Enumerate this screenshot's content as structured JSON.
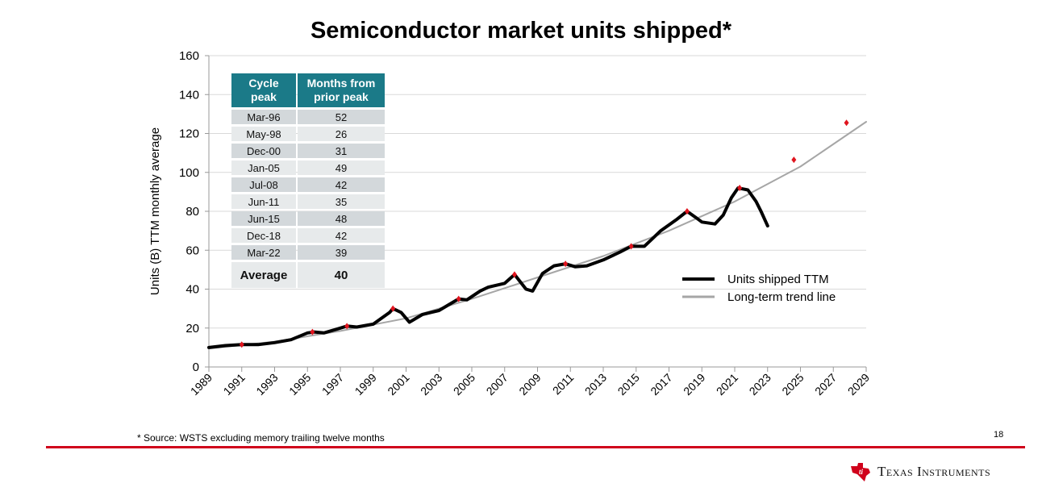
{
  "chart_data": {
    "type": "line",
    "title": "Semiconductor market units shipped*",
    "xlabel": "",
    "ylabel": "Units (B) TTM monthly average",
    "xlim": [
      1989,
      2029
    ],
    "ylim": [
      0,
      160
    ],
    "x_ticks": [
      "1989",
      "1991",
      "1993",
      "1995",
      "1997",
      "1999",
      "2001",
      "2003",
      "2005",
      "2007",
      "2009",
      "2011",
      "2013",
      "2015",
      "2017",
      "2019",
      "2021",
      "2023",
      "2025",
      "2027",
      "2029"
    ],
    "y_ticks": [
      "0",
      "20",
      "40",
      "60",
      "80",
      "100",
      "120",
      "140",
      "160"
    ],
    "grid": true,
    "legend_placement": "right",
    "series": [
      {
        "name": "Units shipped TTM",
        "color": "#000000",
        "x": [
          1989,
          1990,
          1991,
          1992,
          1993,
          1994,
          1995,
          1995.4,
          1996,
          1997,
          1997.4,
          1998,
          1999,
          2000,
          2000.2,
          2000.7,
          2001.2,
          2002,
          2002.5,
          2003,
          2004,
          2004.2,
          2004.7,
          2005.5,
          2006,
          2007,
          2007.6,
          2008.3,
          2008.7,
          2009.3,
          2010,
          2010.7,
          2011.3,
          2012,
          2013,
          2014,
          2014.7,
          2015.5,
          2016,
          2016.5,
          2017.5,
          2018.1,
          2018.6,
          2019,
          2019.8,
          2020.3,
          2020.8,
          2021.2,
          2021.8,
          2022.3,
          2022.6,
          2023
        ],
        "y": [
          10,
          11,
          11.5,
          11.5,
          12.5,
          14,
          17.5,
          18,
          17.5,
          20,
          21,
          20.5,
          22,
          28,
          30,
          28,
          23,
          27,
          28,
          29,
          34,
          35,
          34.5,
          39,
          41,
          43,
          47.5,
          40,
          39,
          48,
          52,
          53,
          51.5,
          52,
          55,
          59,
          62,
          62,
          66,
          70,
          76,
          80,
          77,
          74.5,
          73.5,
          78,
          87,
          92,
          91,
          85,
          80,
          72.5
        ]
      },
      {
        "name": "Long-term trend line",
        "color": "#a6a6a6",
        "x": [
          1989,
          1993,
          1997,
          2001,
          2005,
          2009,
          2013,
          2017,
          2021,
          2025,
          2029
        ],
        "y": [
          9.5,
          13,
          18.5,
          25,
          35,
          46,
          57,
          70,
          85,
          103,
          126
        ]
      }
    ],
    "markers": {
      "color": "#e0141e",
      "x": [
        1991,
        1995.3,
        1997.4,
        2000.2,
        2004.2,
        2007.6,
        2010.7,
        2014.7,
        2018.1,
        2021.3,
        2024.6,
        2027.8
      ],
      "y": [
        11.5,
        18,
        21,
        30,
        35,
        47.5,
        53,
        62,
        80,
        92,
        106.5,
        125.5
      ]
    }
  },
  "table": {
    "headers": [
      "Cycle peak",
      "Months from prior peak"
    ],
    "rows": [
      [
        "Mar-96",
        "52"
      ],
      [
        "May-98",
        "26"
      ],
      [
        "Dec-00",
        "31"
      ],
      [
        "Jan-05",
        "49"
      ],
      [
        "Jul-08",
        "42"
      ],
      [
        "Jun-11",
        "35"
      ],
      [
        "Jun-15",
        "48"
      ],
      [
        "Dec-18",
        "42"
      ],
      [
        "Mar-22",
        "39"
      ]
    ],
    "average": [
      "Average",
      "40"
    ]
  },
  "footnote": "* Source: WSTS excluding memory trailing twelve months",
  "page_number": "18",
  "brand": {
    "name": "Texas Instruments",
    "color": "#d0021b"
  }
}
